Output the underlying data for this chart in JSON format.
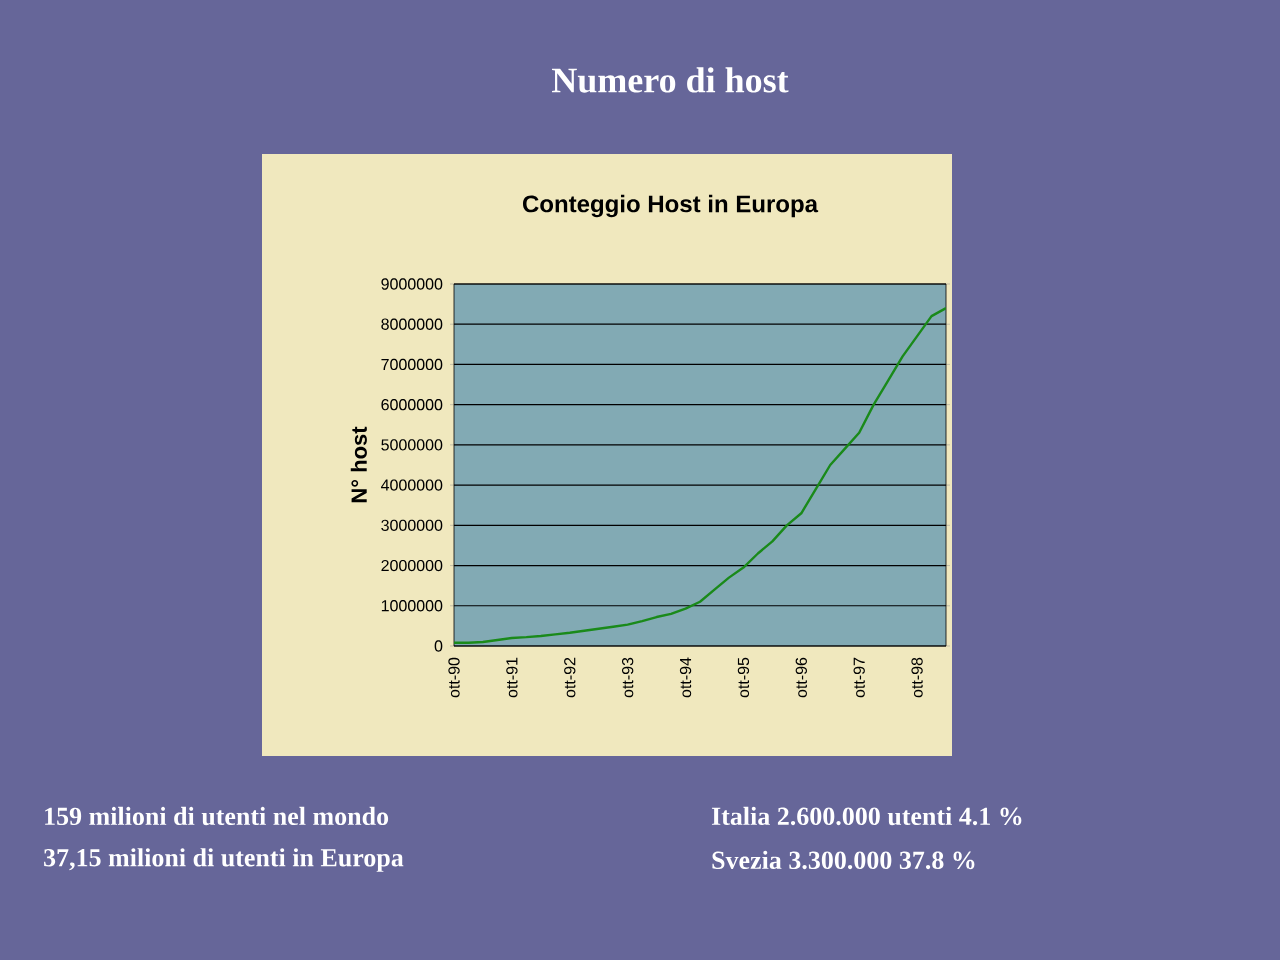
{
  "chart_data": {
    "type": "line",
    "title": "Numero di host",
    "subtitle": "Conteggio Host in Europa",
    "ylabel": "N° host",
    "categories": [
      "ott-90",
      null,
      null,
      null,
      "ott-91",
      null,
      null,
      null,
      "ott-92",
      null,
      null,
      null,
      "ott-93",
      null,
      null,
      null,
      "ott-94",
      null,
      null,
      null,
      "ott-95",
      null,
      null,
      null,
      "ott-96",
      null,
      null,
      null,
      "ott-97",
      null,
      null,
      null,
      "ott-98",
      null,
      null
    ],
    "series": [
      {
        "color": "#1a8a1a",
        "values": [
          80000,
          80000,
          100000,
          150000,
          200000,
          220000,
          250000,
          290000,
          330000,
          380000,
          430000,
          480000,
          530000,
          620000,
          720000,
          800000,
          930000,
          1100000,
          1400000,
          1700000,
          1950000,
          2300000,
          2600000,
          3000000,
          3300000,
          3900000,
          4500000,
          4900000,
          5300000,
          6000000,
          6600000,
          7200000,
          7700000,
          8200000,
          8400000
        ]
      }
    ],
    "ylim": [
      0,
      9000000
    ],
    "yticks": [
      0,
      1000000,
      2000000,
      3000000,
      4000000,
      5000000,
      6000000,
      7000000,
      8000000,
      9000000
    ],
    "grid": "y",
    "annotations": [
      "159 milioni di utenti nel mondo",
      "37,15 milioni di utenti in Europa",
      "Italia 2.600.000 utenti 4.1 %",
      "Svezia 3.300.000 37.8 %"
    ]
  }
}
